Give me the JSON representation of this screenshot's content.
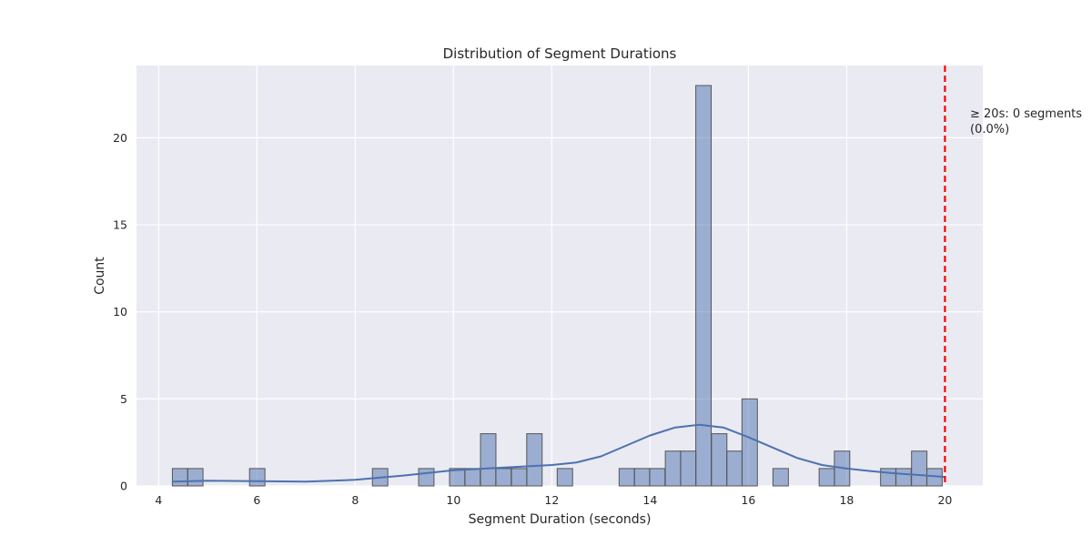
{
  "chart_data": {
    "type": "bar",
    "title": "Distribution of Segment Durations",
    "xlabel": "Segment Duration (seconds)",
    "ylabel": "Count",
    "xlim": [
      3.55,
      20.77
    ],
    "ylim": [
      0,
      24.15
    ],
    "xticks": [
      4,
      6,
      8,
      10,
      12,
      14,
      16,
      18,
      20
    ],
    "yticks": [
      0,
      5,
      10,
      15,
      20
    ],
    "bin_width": 0.3134,
    "bins": [
      {
        "x": 4.28,
        "count": 1
      },
      {
        "x": 4.59,
        "count": 1
      },
      {
        "x": 5.85,
        "count": 1
      },
      {
        "x": 8.35,
        "count": 1
      },
      {
        "x": 9.29,
        "count": 1
      },
      {
        "x": 9.92,
        "count": 1
      },
      {
        "x": 10.23,
        "count": 1
      },
      {
        "x": 10.55,
        "count": 3
      },
      {
        "x": 10.86,
        "count": 1
      },
      {
        "x": 11.18,
        "count": 1
      },
      {
        "x": 11.49,
        "count": 3
      },
      {
        "x": 12.11,
        "count": 1
      },
      {
        "x": 13.37,
        "count": 1
      },
      {
        "x": 13.68,
        "count": 1
      },
      {
        "x": 13.99,
        "count": 1
      },
      {
        "x": 14.31,
        "count": 2
      },
      {
        "x": 14.62,
        "count": 2
      },
      {
        "x": 14.93,
        "count": 23
      },
      {
        "x": 15.25,
        "count": 3
      },
      {
        "x": 15.56,
        "count": 2
      },
      {
        "x": 15.87,
        "count": 5
      },
      {
        "x": 16.5,
        "count": 1
      },
      {
        "x": 17.44,
        "count": 1
      },
      {
        "x": 17.75,
        "count": 2
      },
      {
        "x": 18.69,
        "count": 1
      },
      {
        "x": 19.0,
        "count": 1
      },
      {
        "x": 19.32,
        "count": 2
      },
      {
        "x": 19.63,
        "count": 1
      }
    ],
    "kde": {
      "x": [
        4.28,
        5,
        6,
        7,
        8,
        9,
        10,
        11,
        12,
        12.5,
        13,
        13.5,
        14,
        14.5,
        15,
        15.5,
        16,
        16.5,
        17,
        17.5,
        18,
        18.5,
        19,
        19.5,
        20
      ],
      "y": [
        0.25,
        0.3,
        0.27,
        0.25,
        0.35,
        0.6,
        0.9,
        1.05,
        1.2,
        1.35,
        1.7,
        2.3,
        2.9,
        3.35,
        3.52,
        3.35,
        2.8,
        2.2,
        1.6,
        1.2,
        1.0,
        0.85,
        0.72,
        0.62,
        0.52
      ]
    },
    "threshold_line": {
      "x": 20,
      "color": "#ff0000",
      "style": "dashed"
    },
    "annotation": {
      "line1": "≥ 20s: 0 segments",
      "line2": "(0.0%)"
    },
    "grid": true,
    "colors": {
      "background": "#eaeaf2",
      "grid": "#ffffff",
      "bar_fill": "#4c72b0",
      "bar_edge": "#555555",
      "kde_line": "#4c72b0"
    }
  }
}
